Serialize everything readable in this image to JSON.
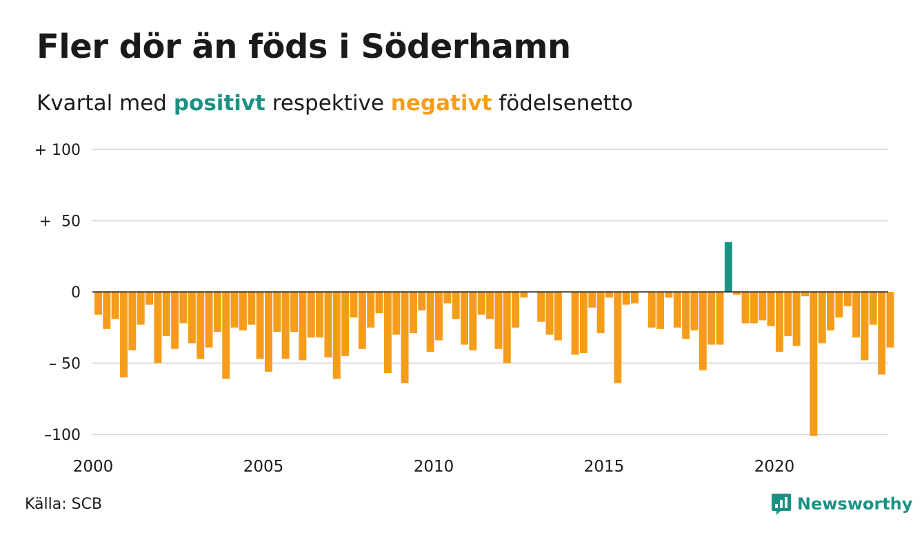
{
  "title": "Fler dör än föds i Söderhamn",
  "subtitle": {
    "part1": "Kvartal med",
    "positive_word": "positivt",
    "part2": "respektive",
    "negative_word": "negativt",
    "part3": "födelsenetto"
  },
  "colors": {
    "positive": "#1a9283",
    "negative": "#f59d1a",
    "gridline": "#dcdcdc",
    "zero_line": "#222222",
    "text": "#1a1a1a",
    "brand": "#1a9283"
  },
  "source": "Källa: SCB",
  "brand": {
    "name": "Newsworthy",
    "icon": "newsworthy-logo-icon"
  },
  "chart_data": {
    "type": "bar",
    "title": "Fler dör än föds i Söderhamn",
    "subtitle": "Kvartal med positivt respektive negativt födelsenetto",
    "xlabel": "",
    "ylabel": "",
    "ylim": [
      -100,
      100
    ],
    "yticks": [
      100,
      50,
      0,
      -50,
      -100
    ],
    "ytick_labels": [
      "+ 100",
      "+  50",
      "0",
      "– 50",
      "–100"
    ],
    "xticks": [
      2000,
      2005,
      2010,
      2015,
      2020
    ],
    "xtick_labels": [
      "2000",
      "2005",
      "2010",
      "2015",
      "2020"
    ],
    "x_start_year": 2000,
    "quarters_per_year": 4,
    "grid": true,
    "legend": "none",
    "series": [
      {
        "values": [
          -16,
          -26,
          -19,
          -60,
          -41,
          -23,
          -9,
          -50,
          -31,
          -40,
          -22,
          -36,
          -47,
          -39,
          -28,
          -61,
          -25,
          -27,
          -23,
          -47,
          -56,
          -28,
          -47,
          -28,
          -48,
          -32,
          -32,
          -46,
          -61,
          -45,
          -18,
          -40,
          -25,
          -15,
          -57,
          -30,
          -64,
          -29,
          -13,
          -42,
          -34,
          -8,
          -19,
          -37,
          -41,
          -16,
          -19,
          -40,
          -50,
          -25,
          -4,
          0,
          -21,
          -30,
          -34,
          0,
          -44,
          -43,
          -11,
          -29,
          -4,
          -64,
          -9,
          -8,
          0,
          -25,
          -26,
          -4,
          -25,
          -33,
          -27,
          -55,
          -37,
          -37,
          35,
          -2,
          -22,
          -22,
          -20,
          -24,
          -42,
          -31,
          -38,
          -3,
          -101,
          -36,
          -27,
          -18,
          -10,
          -32,
          -48,
          -23,
          -58,
          -39
        ]
      }
    ]
  }
}
